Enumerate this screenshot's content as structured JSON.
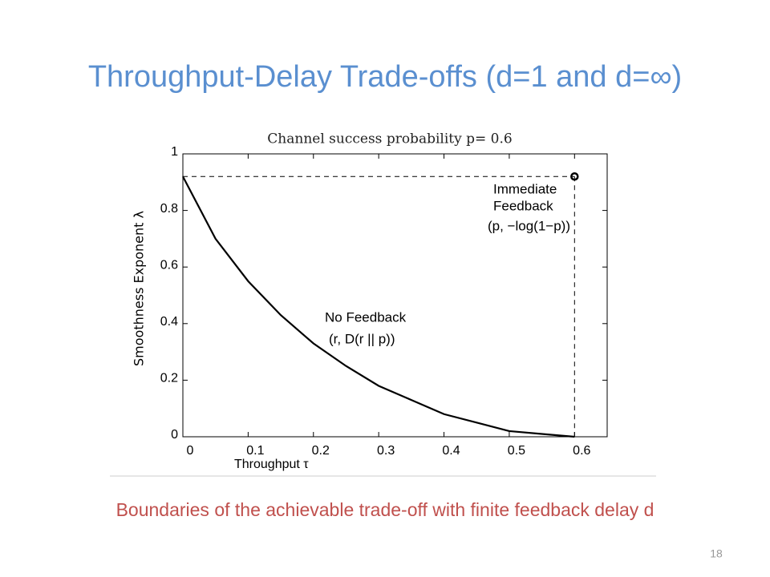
{
  "title": "Throughput-Delay Trade-offs (d=1 and d=∞)",
  "chart_data": {
    "type": "line",
    "title": "Channel success probability p= 0.6",
    "xlabel": "Throughput τ",
    "ylabel": "Smoothness Exponent   λ",
    "curve": {
      "x": [
        0,
        0.05,
        0.1,
        0.15,
        0.2,
        0.25,
        0.3,
        0.35,
        0.4,
        0.45,
        0.5,
        0.55,
        0.6
      ],
      "values": [
        0.92,
        0.7,
        0.55,
        0.43,
        0.33,
        0.25,
        0.18,
        0.13,
        0.08,
        0.05,
        0.02,
        0.01,
        0
      ],
      "color": "#000000"
    },
    "marker": {
      "x": 0.6,
      "value": 0.92,
      "color": "#000000"
    },
    "xlim": [
      0,
      0.65
    ],
    "ylim": [
      0,
      1
    ],
    "xticks": [
      0,
      0.1,
      0.2,
      0.3,
      0.4,
      0.5,
      0.6
    ],
    "yticks": [
      0,
      0.2,
      0.4,
      0.6,
      0.8,
      1
    ],
    "annotations": [
      "Immediate",
      "Feedback",
      "(p, −log(1−p))",
      "No Feedback",
      "(r, D(r || p))"
    ]
  },
  "caption": "Boundaries of the achievable trade-off with finite feedback delay d",
  "page_number": "18"
}
